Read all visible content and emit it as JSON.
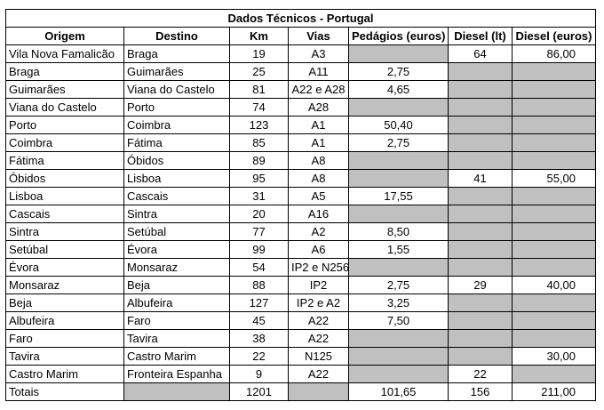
{
  "title": "Dados Técnicos - Portugal",
  "headers": [
    "Origem",
    "Destino",
    "Km",
    "Vias",
    "Pedágios (euros)",
    "Diesel (lt)",
    "Diesel (euros)"
  ],
  "rows": [
    {
      "origem": "Vila Nova Famalicão",
      "destino": "Braga",
      "km": "19",
      "vias": "A3",
      "pedagios": "",
      "diesel_lt": "64",
      "diesel_euros": "86,00",
      "grey": [
        false,
        true,
        false,
        false
      ]
    },
    {
      "origem": "Braga",
      "destino": "Guimarães",
      "km": "25",
      "vias": "A11",
      "pedagios": "2,75",
      "diesel_lt": "",
      "diesel_euros": "",
      "grey": [
        false,
        false,
        true,
        true
      ]
    },
    {
      "origem": "Guimarães",
      "destino": "Viana do Castelo",
      "km": "81",
      "vias": "A22 e A28",
      "pedagios": "4,65",
      "diesel_lt": "",
      "diesel_euros": "",
      "grey": [
        false,
        false,
        true,
        true
      ]
    },
    {
      "origem": "Viana do Castelo",
      "destino": "Porto",
      "km": "74",
      "vias": "A28",
      "pedagios": "",
      "diesel_lt": "",
      "diesel_euros": "",
      "grey": [
        false,
        true,
        true,
        true
      ]
    },
    {
      "origem": "Porto",
      "destino": "Coimbra",
      "km": "123",
      "vias": "A1",
      "pedagios": "50,40",
      "diesel_lt": "",
      "diesel_euros": "",
      "grey": [
        false,
        false,
        true,
        true
      ]
    },
    {
      "origem": "Coimbra",
      "destino": "Fátima",
      "km": "85",
      "vias": "A1",
      "pedagios": "2,75",
      "diesel_lt": "",
      "diesel_euros": "",
      "grey": [
        false,
        false,
        true,
        true
      ]
    },
    {
      "origem": "Fátima",
      "destino": "Óbidos",
      "km": "89",
      "vias": "A8",
      "pedagios": "",
      "diesel_lt": "",
      "diesel_euros": "",
      "grey": [
        false,
        true,
        true,
        true
      ]
    },
    {
      "origem": "Óbidos",
      "destino": "Lisboa",
      "km": "95",
      "vias": "A8",
      "pedagios": "",
      "diesel_lt": "41",
      "diesel_euros": "55,00",
      "grey": [
        false,
        true,
        false,
        false
      ]
    },
    {
      "origem": "Lisboa",
      "destino": "Cascais",
      "km": "31",
      "vias": "A5",
      "pedagios": "17,55",
      "diesel_lt": "",
      "diesel_euros": "",
      "grey": [
        false,
        false,
        true,
        true
      ]
    },
    {
      "origem": "Cascais",
      "destino": "Sintra",
      "km": "20",
      "vias": "A16",
      "pedagios": "",
      "diesel_lt": "",
      "diesel_euros": "",
      "grey": [
        false,
        true,
        true,
        true
      ]
    },
    {
      "origem": "Sintra",
      "destino": "Setúbal",
      "km": "77",
      "vias": "A2",
      "pedagios": "8,50",
      "diesel_lt": "",
      "diesel_euros": "",
      "grey": [
        false,
        false,
        true,
        true
      ]
    },
    {
      "origem": "Setúbal",
      "destino": "Évora",
      "km": "99",
      "vias": "A6",
      "pedagios": "1,55",
      "diesel_lt": "",
      "diesel_euros": "",
      "grey": [
        false,
        false,
        true,
        true
      ]
    },
    {
      "origem": "Évora",
      "destino": "Monsaraz",
      "km": "54",
      "vias": "IP2 e N256",
      "pedagios": "",
      "diesel_lt": "",
      "diesel_euros": "",
      "grey": [
        false,
        true,
        true,
        true
      ]
    },
    {
      "origem": "Monsaraz",
      "destino": "Beja",
      "km": "88",
      "vias": "IP2",
      "pedagios": "2,75",
      "diesel_lt": "29",
      "diesel_euros": "40,00",
      "grey": [
        false,
        false,
        false,
        false
      ]
    },
    {
      "origem": "Beja",
      "destino": "Albufeira",
      "km": "127",
      "vias": "IP2 e A2",
      "pedagios": "3,25",
      "diesel_lt": "",
      "diesel_euros": "",
      "grey": [
        false,
        false,
        true,
        true
      ]
    },
    {
      "origem": "Albufeira",
      "destino": "Faro",
      "km": "45",
      "vias": "A22",
      "pedagios": "7,50",
      "diesel_lt": "",
      "diesel_euros": "",
      "grey": [
        false,
        false,
        true,
        true
      ]
    },
    {
      "origem": "Faro",
      "destino": "Tavira",
      "km": "38",
      "vias": "A22",
      "pedagios": "",
      "diesel_lt": "",
      "diesel_euros": "",
      "grey": [
        false,
        true,
        true,
        true
      ]
    },
    {
      "origem": "Tavira",
      "destino": "Castro Marim",
      "km": "22",
      "vias": "N125",
      "pedagios": "",
      "diesel_lt": "",
      "diesel_euros": "30,00",
      "grey": [
        false,
        true,
        true,
        false
      ]
    },
    {
      "origem": "Castro Marim",
      "destino": "Fronteira Espanha",
      "km": "9",
      "vias": "A22",
      "pedagios": "",
      "diesel_lt": "22",
      "diesel_euros": "",
      "grey": [
        false,
        true,
        false,
        true
      ]
    }
  ],
  "totals": {
    "label": "Totais",
    "destino": "",
    "km": "1201",
    "vias": "",
    "pedagios": "101,65",
    "diesel_lt": "156",
    "diesel_euros": "211,00"
  },
  "colors": {
    "grey_fill": "#c0c0c0",
    "border": "#000000"
  }
}
